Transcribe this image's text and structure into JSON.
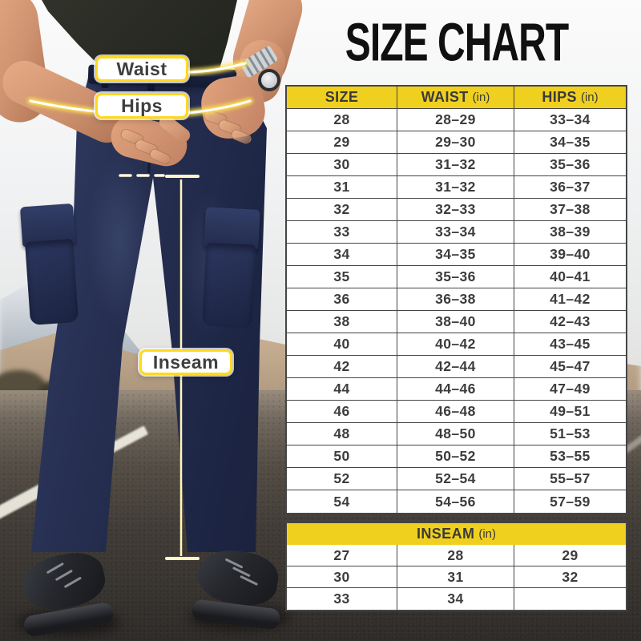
{
  "title": "SIZE CHART",
  "photo": {
    "measurement_labels": {
      "waist": "Waist",
      "hips": "Hips",
      "inseam": "Inseam"
    }
  },
  "size_table": {
    "headers": [
      {
        "label": "SIZE",
        "unit": ""
      },
      {
        "label": "WAIST",
        "unit": "(in)"
      },
      {
        "label": "HIPS",
        "unit": "(in)"
      }
    ],
    "rows": [
      [
        "28",
        "28–29",
        "33–34"
      ],
      [
        "29",
        "29–30",
        "34–35"
      ],
      [
        "30",
        "31–32",
        "35–36"
      ],
      [
        "31",
        "31–32",
        "36–37"
      ],
      [
        "32",
        "32–33",
        "37–38"
      ],
      [
        "33",
        "33–34",
        "38–39"
      ],
      [
        "34",
        "34–35",
        "39–40"
      ],
      [
        "35",
        "35–36",
        "40–41"
      ],
      [
        "36",
        "36–38",
        "41–42"
      ],
      [
        "38",
        "38–40",
        "42–43"
      ],
      [
        "40",
        "40–42",
        "43–45"
      ],
      [
        "42",
        "42–44",
        "45–47"
      ],
      [
        "44",
        "44–46",
        "47–49"
      ],
      [
        "46",
        "46–48",
        "49–51"
      ],
      [
        "48",
        "48–50",
        "51–53"
      ],
      [
        "50",
        "50–52",
        "53–55"
      ],
      [
        "52",
        "52–54",
        "55–57"
      ],
      [
        "54",
        "54–56",
        "57–59"
      ]
    ]
  },
  "inseam_table": {
    "header": "INSEAM",
    "unit": "(in)",
    "rows": [
      [
        "27",
        "28",
        "29"
      ],
      [
        "30",
        "31",
        "32"
      ],
      [
        "33",
        "34",
        ""
      ]
    ]
  },
  "colors": {
    "accent_yellow": "#F0D01F",
    "table_line": "#454545",
    "cell_text": "#3C3C3C",
    "title_text": "#101010",
    "label_border": "#FFD91E",
    "tape_glow": "#FFE24D",
    "pants_navy": "#1E2746"
  }
}
